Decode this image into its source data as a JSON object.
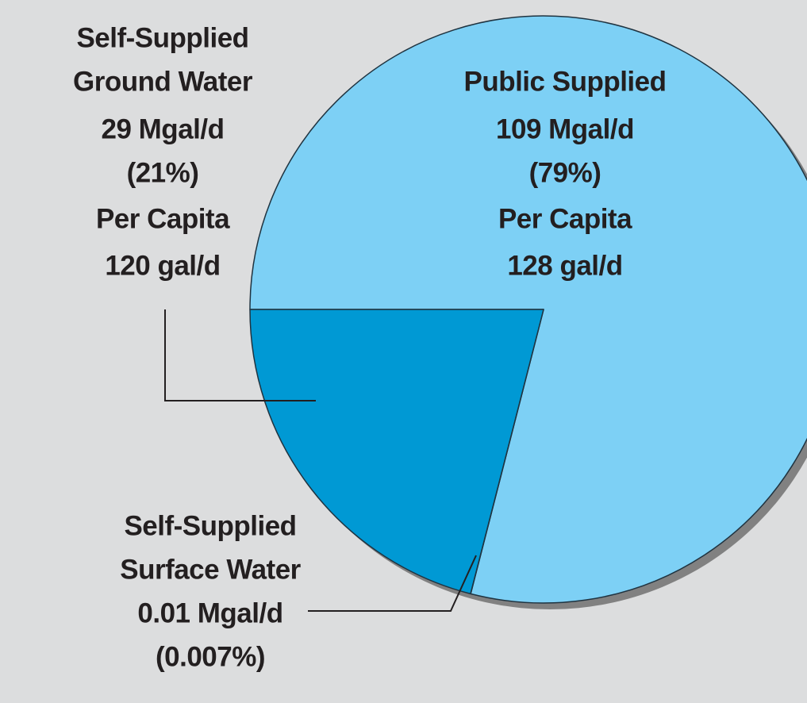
{
  "chart_data": {
    "type": "pie",
    "values": [
      79,
      21,
      0.007
    ],
    "value_labels": [
      "(79%)",
      "(21%)",
      "(0.007%)"
    ],
    "colors": [
      "#7dd0f5",
      "#0099d4",
      "#e0d3ac"
    ],
    "label_lines": [
      [
        "Public Supplied",
        "109 Mgal/d"
      ],
      [
        "Self-Supplied",
        "Ground Water",
        "29 Mgal/d"
      ],
      [
        "Self-Supplied",
        "Surface Water",
        "0.01 Mgal/d"
      ]
    ],
    "per_capita": [
      [
        "Per Capita",
        "128 gal/d"
      ],
      [
        "Per Capita",
        "120 gal/d"
      ]
    ]
  }
}
